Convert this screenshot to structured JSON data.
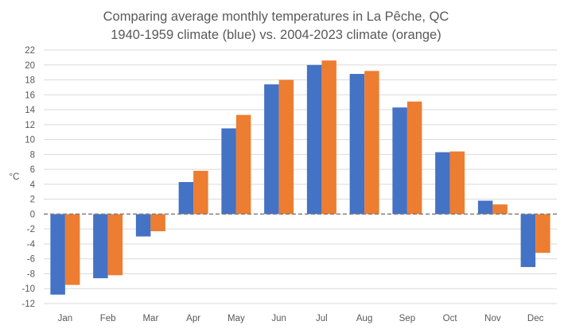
{
  "chart_data": {
    "type": "bar",
    "title": [
      "Comparing average monthly temperatures in La Pêche, QC",
      "1940-1959 climate (blue) vs. 2004-2023 climate (orange)"
    ],
    "xlabel": "",
    "ylabel": "°C",
    "ylim": [
      -12,
      22
    ],
    "yticks": [
      22,
      20,
      18,
      16,
      14,
      12,
      10,
      8,
      6,
      4,
      2,
      0,
      -2,
      -4,
      -6,
      -8,
      -10,
      -12
    ],
    "ytick_labels": [
      "22",
      "20",
      "18",
      "16",
      "14",
      "12",
      "10",
      "8",
      "6",
      "4",
      "2",
      "0",
      "-2",
      "-4",
      "-6",
      "-8",
      "-10",
      "-12"
    ],
    "grid": true,
    "categories": [
      "Jan",
      "Feb",
      "Mar",
      "Apr",
      "May",
      "Jun",
      "Jul",
      "Aug",
      "Sep",
      "Oct",
      "Nov",
      "Dec"
    ],
    "series": [
      {
        "name": "1940-1959 climate",
        "color": "#4472c4",
        "values": [
          -10.8,
          -8.6,
          -3.0,
          4.3,
          11.5,
          17.4,
          20.0,
          18.8,
          14.3,
          8.3,
          1.8,
          -7.1
        ]
      },
      {
        "name": "2004-2023 climate",
        "color": "#ed7d31",
        "values": [
          -9.5,
          -8.2,
          -2.3,
          5.8,
          13.3,
          18.0,
          20.6,
          19.2,
          15.1,
          8.4,
          1.3,
          -5.2
        ]
      }
    ]
  }
}
